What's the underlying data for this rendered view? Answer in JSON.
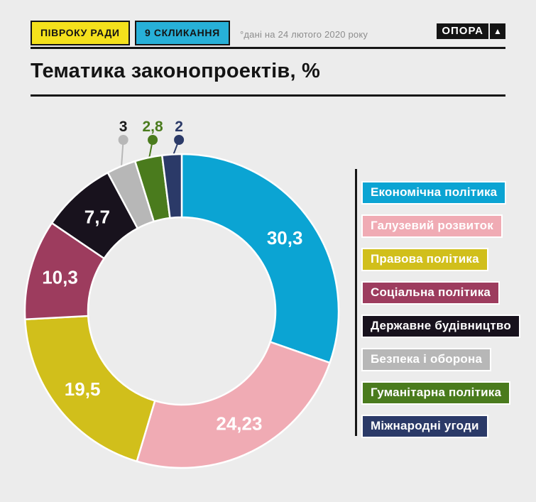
{
  "header": {
    "badge1": "ПІВРОКУ РАДИ",
    "badge2": "9 СКЛИКАННЯ",
    "note": "°дані на 24 лютого 2020 року",
    "logo_text": "ОПОРА",
    "logo_mark": "▲"
  },
  "title": "Тематика законопроектів, %",
  "colors": {
    "background": "#ececec",
    "rule": "#161616",
    "badge_yellow": "#f4e11c",
    "badge_blue": "#27b0d8",
    "note_gray": "#8d8d8d",
    "label_white": "#ffffff"
  },
  "chart_data": {
    "type": "pie",
    "subtype": "donut",
    "title": "Тематика законопроектів, %",
    "unit": "%",
    "legend_position": "right",
    "start_angle": "12-oclock",
    "direction": "clockwise",
    "series": [
      {
        "label": "Економічна політика",
        "value": 30.3,
        "display": "30,3",
        "color": "#0ba4d3"
      },
      {
        "label": "Галузевий розвиток",
        "value": 24.23,
        "display": "24,23",
        "color": "#f0abb4"
      },
      {
        "label": "Правова політика",
        "value": 19.5,
        "display": "19,5",
        "color": "#d1bf1b"
      },
      {
        "label": "Соціальна політика",
        "value": 10.3,
        "display": "10,3",
        "color": "#9d3c5e"
      },
      {
        "label": "Державне будівництво",
        "value": 7.7,
        "display": "7,7",
        "color": "#18121d"
      },
      {
        "label": "Безпека і оборона",
        "value": 3,
        "display": "3",
        "color": "#b7b7b7",
        "callout": true,
        "callout_text_color": "#1a1a1a"
      },
      {
        "label": "Гуманітарна політика",
        "value": 2.8,
        "display": "2,8",
        "color": "#4a7b1d",
        "callout": true,
        "callout_text_color": "#4a7b1d"
      },
      {
        "label": "Міжнародні угоди",
        "value": 2,
        "display": "2",
        "color": "#2b3a68",
        "callout": true,
        "callout_text_color": "#2b3a68"
      }
    ]
  }
}
